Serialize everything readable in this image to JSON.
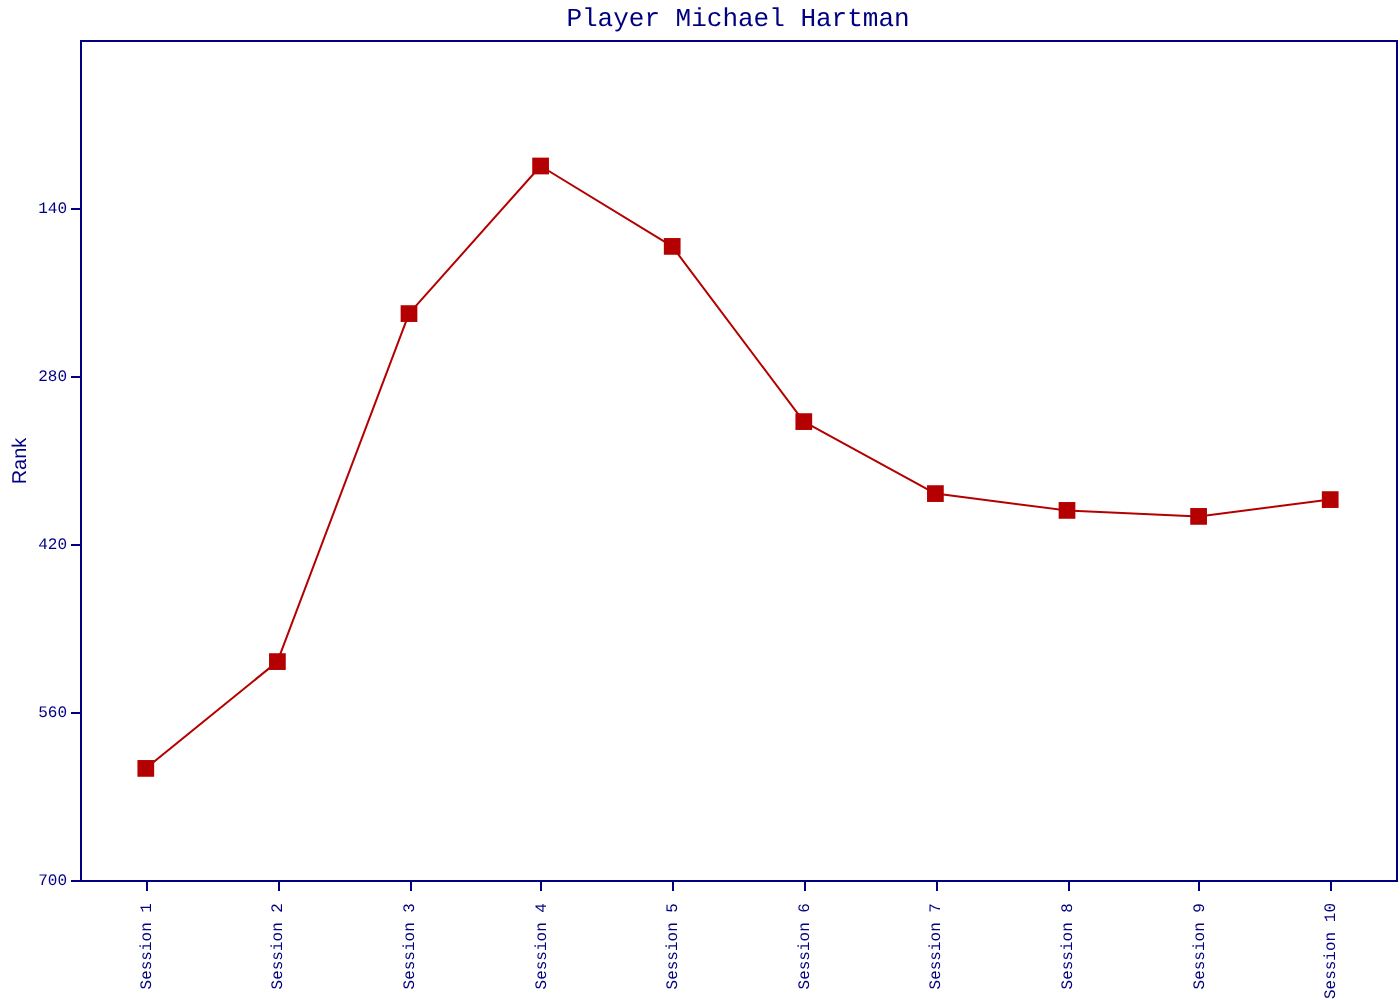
{
  "chart_data": {
    "type": "line",
    "title": "Player Michael Hartman",
    "ylabel": "Rank",
    "categories": [
      "Session 1",
      "Session 2",
      "Session 3",
      "Session 4",
      "Session 5",
      "Session 6",
      "Session 7",
      "Session 8",
      "Session 9",
      "Session 10"
    ],
    "series": [
      {
        "color": "#b40000",
        "values": [
          607,
          518,
          228,
          105,
          172,
          318,
          378,
          392,
          397,
          383
        ]
      }
    ],
    "ylim": [
      700,
      0
    ],
    "yticks": [
      140,
      280,
      420,
      560,
      700
    ],
    "grid": false,
    "legend": false,
    "marker": "square",
    "line_style": "solid"
  }
}
